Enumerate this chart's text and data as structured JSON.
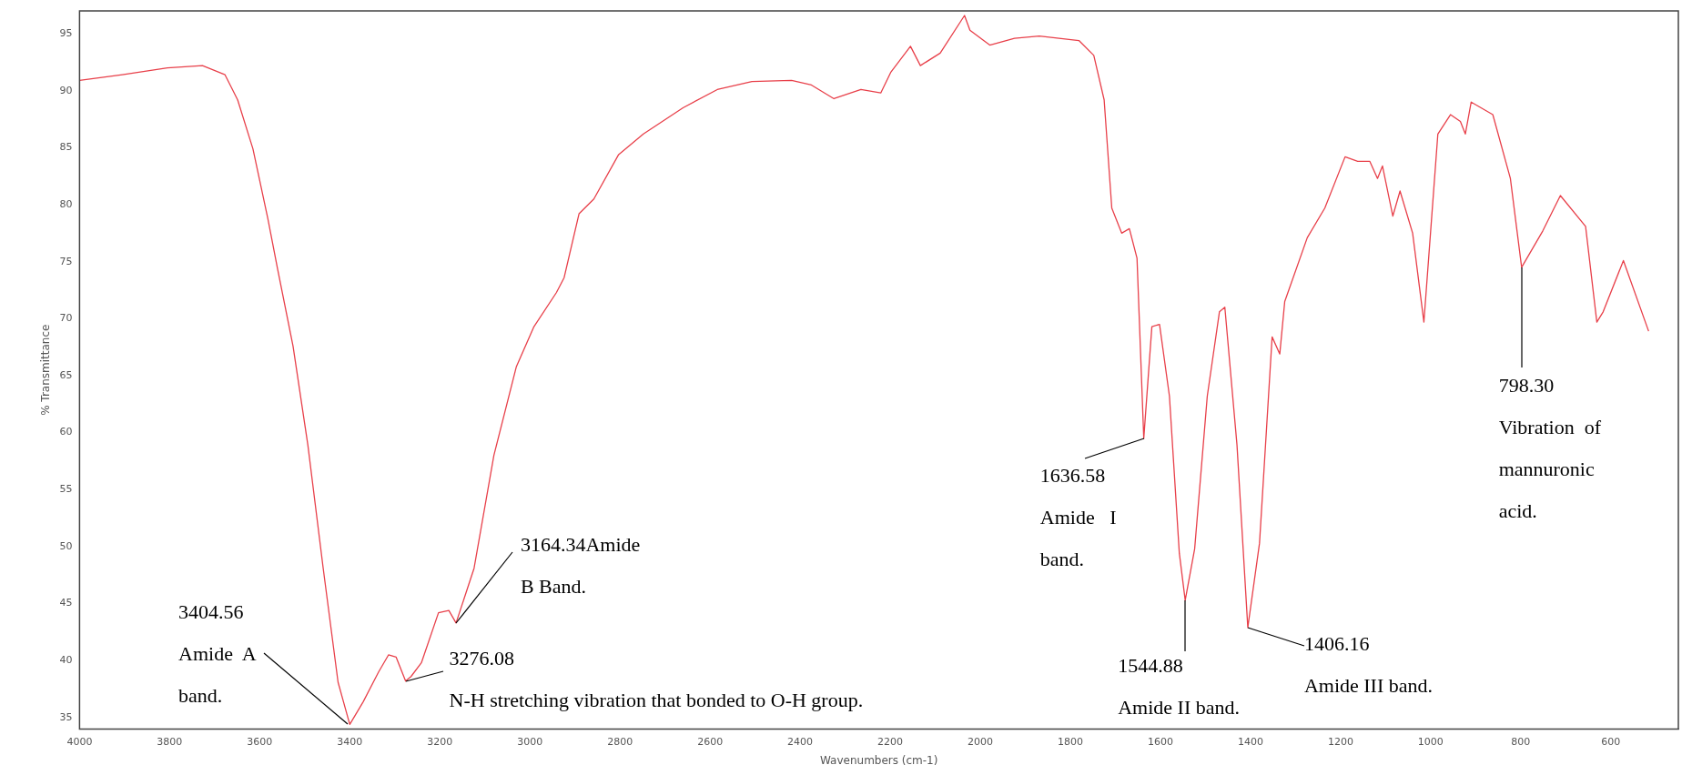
{
  "chart_data": {
    "type": "line",
    "xlabel": "Wavenumbers (cm-1)",
    "ylabel": "% Transmittance",
    "x": [
      4000,
      3905,
      3805,
      3727,
      3677,
      3649,
      3615,
      3582,
      3560,
      3526,
      3493,
      3459,
      3426,
      3400,
      3370,
      3336,
      3314,
      3297,
      3276,
      3264,
      3241,
      3203,
      3180,
      3164,
      3124,
      3080,
      3030,
      2991,
      2941,
      2924,
      2891,
      2858,
      2803,
      2748,
      2660,
      2584,
      2507,
      2419,
      2375,
      2325,
      2265,
      2221,
      2199,
      2155,
      2133,
      2089,
      2035,
      2023,
      1979,
      1924,
      1869,
      1781,
      1748,
      1725,
      1708,
      1686,
      1669,
      1652,
      1637,
      1619,
      1602,
      1580,
      1558,
      1545,
      1524,
      1496,
      1469,
      1457,
      1430,
      1406,
      1380,
      1352,
      1335,
      1324,
      1274,
      1235,
      1190,
      1162,
      1135,
      1118,
      1107,
      1084,
      1068,
      1040,
      1015,
      984,
      956,
      934,
      923,
      910,
      862,
      823,
      798,
      751,
      712,
      656,
      631,
      617,
      572,
      516
    ],
    "values": [
      90.9,
      91.4,
      92.0,
      92.2,
      91.4,
      89.2,
      84.9,
      78.8,
      74.3,
      67.6,
      58.9,
      48.1,
      38.1,
      34.4,
      36.4,
      39.0,
      40.5,
      40.3,
      38.2,
      38.6,
      39.8,
      44.2,
      44.4,
      43.3,
      48.1,
      58.0,
      65.8,
      69.3,
      72.3,
      73.6,
      79.2,
      80.5,
      84.4,
      86.2,
      88.5,
      90.1,
      90.8,
      90.9,
      90.5,
      89.3,
      90.1,
      89.8,
      91.6,
      93.9,
      92.2,
      93.3,
      96.6,
      95.3,
      94.0,
      94.6,
      94.8,
      94.4,
      93.1,
      89.2,
      79.7,
      77.5,
      77.9,
      75.3,
      59.5,
      69.3,
      69.5,
      63.2,
      49.4,
      45.3,
      49.8,
      63.2,
      70.6,
      71.0,
      58.9,
      42.9,
      50.3,
      68.4,
      66.9,
      71.5,
      77.1,
      79.7,
      84.2,
      83.8,
      83.8,
      82.3,
      83.4,
      79.0,
      81.2,
      77.5,
      69.7,
      86.2,
      87.9,
      87.3,
      86.2,
      89.0,
      87.9,
      82.3,
      74.5,
      77.7,
      80.8,
      78.1,
      69.7,
      70.6,
      75.1,
      68.9
    ],
    "color": "#e8404a",
    "marker": "none",
    "grid": false,
    "legend": false,
    "xlim": [
      4000,
      450
    ],
    "ylim": [
      34,
      97
    ],
    "xticks": [
      4000,
      3800,
      3600,
      3400,
      3200,
      3000,
      2800,
      2600,
      2400,
      2200,
      2000,
      1800,
      1600,
      1400,
      1200,
      1000,
      800,
      600
    ],
    "yticks": [
      35,
      40,
      45,
      50,
      55,
      60,
      65,
      70,
      75,
      80,
      85,
      90,
      95
    ],
    "annotations": [
      {
        "text": "3404.56\nAmide  A\nband.",
        "x": 3404.56,
        "y": 34.4
      },
      {
        "text": "3276.08\nN-H stretching vibration that bonded to O-H group.",
        "x": 3276.08,
        "y": 38.2
      },
      {
        "text": "3164.34Amide\nB Band.",
        "x": 3164.34,
        "y": 43.3
      },
      {
        "text": "1636.58\nAmide   I\nband.",
        "x": 1636.58,
        "y": 59.5
      },
      {
        "text": "1544.88\nAmide II band.",
        "x": 1544.88,
        "y": 45.3
      },
      {
        "text": "1406.16\nAmide III band.",
        "x": 1406.16,
        "y": 42.9
      },
      {
        "text": "798.30\nVibration  of\nmannuronic\nacid.",
        "x": 798.3,
        "y": 74.5
      }
    ]
  }
}
